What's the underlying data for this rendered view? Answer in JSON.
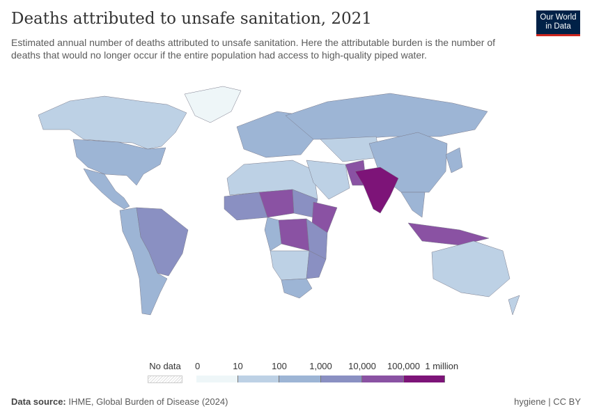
{
  "header": {
    "title": "Deaths attributed to unsafe sanitation, 2021",
    "subtitle": "Estimated annual number of deaths attributed to unsafe sanitation. Here the attributable burden is the number of deaths that would no longer occur if the entire population had access to high-quality piped water.",
    "logo_line1": "Our World",
    "logo_line2": "in Data"
  },
  "legend": {
    "no_data_label": "No data",
    "tick_labels": [
      "0",
      "10",
      "100",
      "1,000",
      "10,000",
      "100,000",
      "1 million"
    ],
    "bin_colors": [
      "#eef6f8",
      "#bdd1e5",
      "#9db5d5",
      "#8a90c2",
      "#8a52a3",
      "#7d1478"
    ],
    "no_data_color": "#e6e6e6"
  },
  "chart_data": {
    "type": "choropleth",
    "scale": "log",
    "bins": [
      "0–10",
      "10–100",
      "100–1,000",
      "1,000–10,000",
      "10,000–100,000",
      "100,000–1 million"
    ],
    "region_bins": [
      1,
      0,
      2,
      2,
      2,
      3,
      2,
      1,
      1,
      2,
      1,
      2,
      4,
      3,
      3,
      4,
      4,
      2,
      3,
      1,
      2,
      3,
      4,
      5,
      2,
      4,
      1,
      1,
      2
    ]
  },
  "footer": {
    "source_label": "Data source:",
    "source": "IHME, Global Burden of Disease (2024)",
    "tags": "hygiene | CC BY"
  }
}
